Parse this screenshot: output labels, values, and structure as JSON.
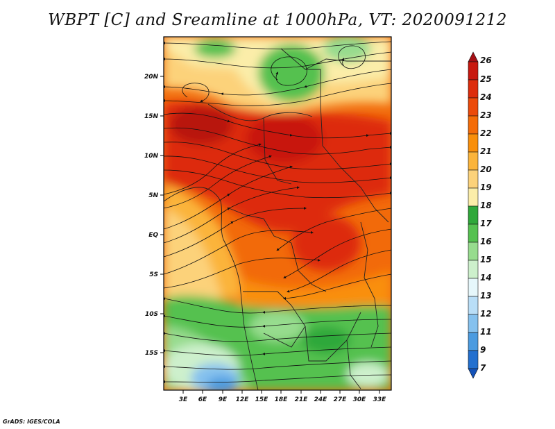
{
  "title": "WBPT [C] and Sreamline at 1000hPa, VT: 2020091212",
  "credit": "GrADS: IGES/COLA",
  "lat_ticks": [
    "20N",
    "15N",
    "10N",
    "5N",
    "EQ",
    "5S",
    "10S",
    "15S"
  ],
  "lon_ticks": [
    "3E",
    "6E",
    "9E",
    "12E",
    "15E",
    "18E",
    "21E",
    "24E",
    "27E",
    "30E",
    "33E"
  ],
  "colorbar": {
    "labels": [
      "26",
      "25",
      "24",
      "23",
      "22",
      "21",
      "20",
      "19",
      "18",
      "17",
      "16",
      "15",
      "14",
      "13",
      "12",
      "11",
      "9",
      "7"
    ],
    "colors": [
      "#a50f15",
      "#c8180f",
      "#dd2c0c",
      "#ec4a0a",
      "#f46c08",
      "#f98f0a",
      "#fbb43a",
      "#fcd27a",
      "#fbeda9",
      "#2fa83a",
      "#55c150",
      "#97dc8e",
      "#cdf0cc",
      "#e6f7fb",
      "#b9def7",
      "#85c1ee",
      "#4b9be0",
      "#2370cf",
      "#1352b8"
    ]
  }
}
